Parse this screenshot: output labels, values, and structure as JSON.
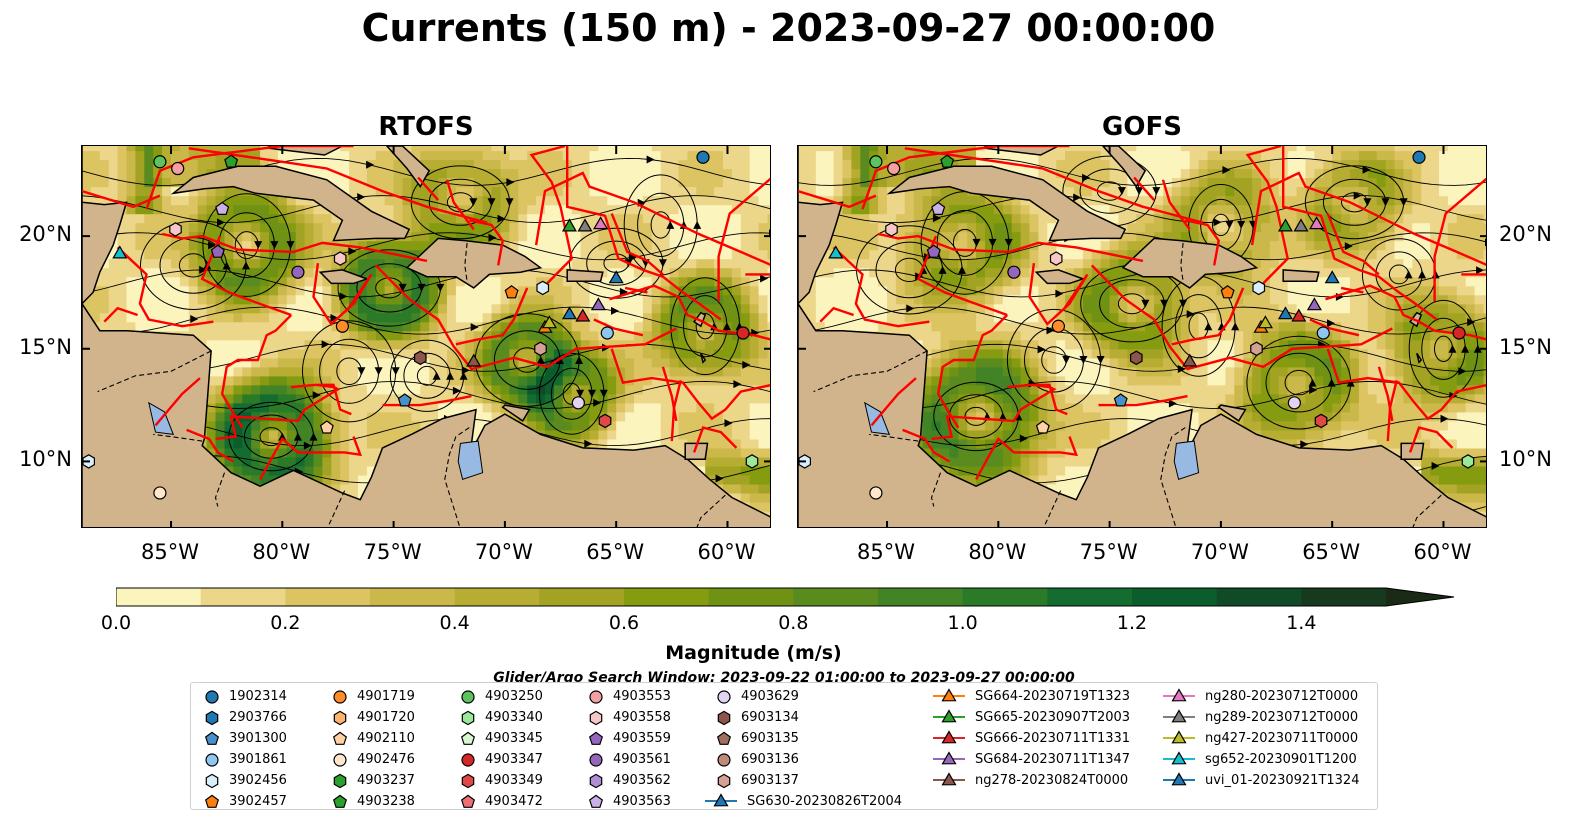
{
  "title": "Currents (150 m) - 2023-09-27 00:00:00",
  "panels": [
    {
      "title": "RTOFS"
    },
    {
      "title": "GOFS"
    }
  ],
  "axes": {
    "x_ticks": [
      "85°W",
      "80°W",
      "75°W",
      "70°W",
      "65°W",
      "60°W"
    ],
    "y_ticks": [
      "20°N",
      "15°N",
      "10°N"
    ]
  },
  "colorbar": {
    "label": "Magnitude (m/s)",
    "ticks": [
      "0.0",
      "0.2",
      "0.4",
      "0.6",
      "0.8",
      "1.0",
      "1.2",
      "1.4"
    ],
    "colors": [
      "#fcf4bd",
      "#ecd68a",
      "#dcc462",
      "#cab94a",
      "#b6ad32",
      "#a2a322",
      "#859b10",
      "#6f9214",
      "#5a8b1e",
      "#428325",
      "#2b7a28",
      "#146c30",
      "#0b5d2c",
      "#114a26",
      "#17391e",
      "#1a2a16"
    ]
  },
  "legend": {
    "search_window": "Glider/Argo Search Window: 2023-09-22 01:00:00 to 2023-09-27 00:00:00",
    "argo": [
      {
        "id": "1902314",
        "color": "#1f77b4",
        "marker": "circle"
      },
      {
        "id": "2903766",
        "color": "#1f77b4",
        "marker": "hexagon"
      },
      {
        "id": "3901300",
        "color": "#4a90c8",
        "marker": "pentagon"
      },
      {
        "id": "3901861",
        "color": "#8ec6ee",
        "marker": "circle"
      },
      {
        "id": "3902456",
        "color": "#d8eefa",
        "marker": "hexagon"
      },
      {
        "id": "3902457",
        "color": "#ff7f0e",
        "marker": "pentagon"
      },
      {
        "id": "4901719",
        "color": "#ff8c2a",
        "marker": "circle"
      },
      {
        "id": "4901720",
        "color": "#ffb26b",
        "marker": "hexagon"
      },
      {
        "id": "4902110",
        "color": "#ffd2a6",
        "marker": "pentagon"
      },
      {
        "id": "4902476",
        "color": "#ffe6cc",
        "marker": "circle"
      },
      {
        "id": "4903237",
        "color": "#2ca02c",
        "marker": "hexagon"
      },
      {
        "id": "4903238",
        "color": "#2ca02c",
        "marker": "pentagon"
      },
      {
        "id": "4903250",
        "color": "#5cc45c",
        "marker": "circle"
      },
      {
        "id": "4903340",
        "color": "#9be89b",
        "marker": "hexagon"
      },
      {
        "id": "4903345",
        "color": "#d8f7d0",
        "marker": "pentagon"
      },
      {
        "id": "4903347",
        "color": "#d62728",
        "marker": "circle"
      },
      {
        "id": "4903349",
        "color": "#e04848",
        "marker": "hexagon"
      },
      {
        "id": "4903472",
        "color": "#ee7070",
        "marker": "pentagon"
      },
      {
        "id": "4903553",
        "color": "#f4a0a0",
        "marker": "circle"
      },
      {
        "id": "4903558",
        "color": "#f8c8c8",
        "marker": "hexagon"
      },
      {
        "id": "4903559",
        "color": "#9467bd",
        "marker": "pentagon"
      },
      {
        "id": "4903561",
        "color": "#9467bd",
        "marker": "circle"
      },
      {
        "id": "4903562",
        "color": "#b08ed4",
        "marker": "hexagon"
      },
      {
        "id": "4903563",
        "color": "#c9b0e6",
        "marker": "pentagon"
      },
      {
        "id": "4903629",
        "color": "#e2d2f4",
        "marker": "circle"
      },
      {
        "id": "6903134",
        "color": "#8c564b",
        "marker": "hexagon"
      },
      {
        "id": "6903135",
        "color": "#a0705e",
        "marker": "pentagon"
      },
      {
        "id": "6903136",
        "color": "#c08a7a",
        "marker": "circle"
      },
      {
        "id": "6903137",
        "color": "#d4a294",
        "marker": "hexagon"
      }
    ],
    "gliders": [
      {
        "id": "SG630-20230826T2004",
        "color": "#1f77b4"
      },
      {
        "id": "SG664-20230719T1323",
        "color": "#ff7f0e"
      },
      {
        "id": "SG665-20230907T2003",
        "color": "#2ca02c"
      },
      {
        "id": "SG666-20230711T1331",
        "color": "#d62728"
      },
      {
        "id": "SG684-20230711T1347",
        "color": "#9467bd"
      },
      {
        "id": "ng278-20230824T0000",
        "color": "#8c564b"
      },
      {
        "id": "ng280-20230712T0000",
        "color": "#e377c2"
      },
      {
        "id": "ng289-20230712T0000",
        "color": "#7f7f7f"
      },
      {
        "id": "ng427-20230711T0000",
        "color": "#bcbd22"
      },
      {
        "id": "sg652-20230901T1200",
        "color": "#17becf"
      },
      {
        "id": "uvi_01-20230921T1324",
        "color": "#1f77b4"
      }
    ]
  },
  "chart_data": {
    "type": "heatmap",
    "title": "Currents (150 m) - 2023-09-27 00:00:00",
    "panels": [
      "RTOFS",
      "GOFS"
    ],
    "xlim": [
      -89,
      -58
    ],
    "ylim": [
      7,
      24
    ],
    "xticks": [
      -85,
      -80,
      -75,
      -70,
      -65,
      -60
    ],
    "yticks": [
      20,
      15,
      10
    ],
    "colorbar_range": [
      0.0,
      1.5
    ],
    "colorbar_label": "Magnitude (m/s)",
    "overlay": "streamlines",
    "markers": [
      {
        "lon": -85.5,
        "lat": 23.3,
        "series": "4903250"
      },
      {
        "lon": -84.7,
        "lat": 23.0,
        "series": "4903553"
      },
      {
        "lon": -82.3,
        "lat": 23.3,
        "series": "4903238"
      },
      {
        "lon": -61.1,
        "lat": 23.5,
        "series": "1902314"
      },
      {
        "lon": -82.7,
        "lat": 21.2,
        "series": "4903563"
      },
      {
        "lon": -84.8,
        "lat": 20.3,
        "series": "4903558"
      },
      {
        "lon": -87.3,
        "lat": 19.2,
        "series": "sg652-20230901T1200"
      },
      {
        "lon": -82.9,
        "lat": 19.3,
        "series": "4903559"
      },
      {
        "lon": -79.3,
        "lat": 18.4,
        "series": "4903561"
      },
      {
        "lon": -77.4,
        "lat": 19.0,
        "series": "4903558"
      },
      {
        "lon": -68.3,
        "lat": 17.7,
        "series": "3902456"
      },
      {
        "lon": -69.7,
        "lat": 17.5,
        "series": "3902457"
      },
      {
        "lon": -67.1,
        "lat": 20.4,
        "series": "SG665-20230907T2003"
      },
      {
        "lon": -66.4,
        "lat": 20.4,
        "series": "ng289-20230712T0000"
      },
      {
        "lon": -65.7,
        "lat": 20.5,
        "series": "ng280-20230712T0000"
      },
      {
        "lon": -65.0,
        "lat": 18.1,
        "series": "uvi_01-20230921T1324"
      },
      {
        "lon": -65.8,
        "lat": 16.9,
        "series": "SG684-20230711T1347"
      },
      {
        "lon": -67.1,
        "lat": 16.5,
        "series": "SG630-20230826T2004"
      },
      {
        "lon": -66.5,
        "lat": 16.4,
        "series": "SG666-20230711T1331"
      },
      {
        "lon": -68.2,
        "lat": 15.9,
        "series": "SG664-20230719T1323"
      },
      {
        "lon": -68.0,
        "lat": 16.1,
        "series": "ng427-20230711T0000"
      },
      {
        "lon": -65.4,
        "lat": 15.7,
        "series": "3901861"
      },
      {
        "lon": -59.3,
        "lat": 15.7,
        "series": "4903347"
      },
      {
        "lon": -77.3,
        "lat": 16.0,
        "series": "4901719"
      },
      {
        "lon": -73.8,
        "lat": 14.6,
        "series": "6903134"
      },
      {
        "lon": -71.4,
        "lat": 14.4,
        "series": "ng278-20230824T0000"
      },
      {
        "lon": -68.4,
        "lat": 15.0,
        "series": "6903137"
      },
      {
        "lon": -74.5,
        "lat": 12.7,
        "series": "3901300"
      },
      {
        "lon": -66.7,
        "lat": 12.6,
        "series": "4903629"
      },
      {
        "lon": -65.5,
        "lat": 11.8,
        "series": "4903349"
      },
      {
        "lon": -78.0,
        "lat": 11.5,
        "series": "4902110"
      },
      {
        "lon": -88.7,
        "lat": 10.0,
        "series": "3902456"
      },
      {
        "lon": -58.9,
        "lat": 10.0,
        "series": "4903340"
      },
      {
        "lon": -85.5,
        "lat": 8.6,
        "series": "4902476"
      }
    ]
  }
}
